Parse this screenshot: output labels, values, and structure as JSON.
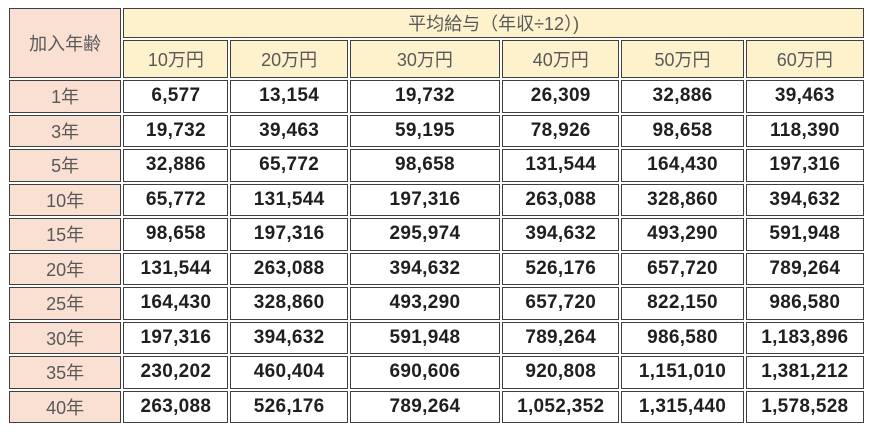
{
  "table": {
    "corner_header": "加入年齢",
    "group_header": "平均給与（年収÷12）)",
    "column_headers": [
      "10万円",
      "20万円",
      "30万円",
      "40万円",
      "50万円",
      "60万円"
    ],
    "rows": [
      {
        "label": "1年",
        "values": [
          "6,577",
          "13,154",
          "19,732",
          "26,309",
          "32,886",
          "39,463"
        ]
      },
      {
        "label": "3年",
        "values": [
          "19,732",
          "39,463",
          "59,195",
          "78,926",
          "98,658",
          "118,390"
        ]
      },
      {
        "label": "5年",
        "values": [
          "32,886",
          "65,772",
          "98,658",
          "131,544",
          "164,430",
          "197,316"
        ]
      },
      {
        "label": "10年",
        "values": [
          "65,772",
          "131,544",
          "197,316",
          "263,088",
          "328,860",
          "394,632"
        ]
      },
      {
        "label": "15年",
        "values": [
          "98,658",
          "197,316",
          "295,974",
          "394,632",
          "493,290",
          "591,948"
        ]
      },
      {
        "label": "20年",
        "values": [
          "131,544",
          "263,088",
          "394,632",
          "526,176",
          "657,720",
          "789,264"
        ]
      },
      {
        "label": "25年",
        "values": [
          "164,430",
          "328,860",
          "493,290",
          "657,720",
          "822,150",
          "986,580"
        ]
      },
      {
        "label": "30年",
        "values": [
          "197,316",
          "394,632",
          "591,948",
          "789,264",
          "986,580",
          "1,183,896"
        ]
      },
      {
        "label": "35年",
        "values": [
          "230,202",
          "460,404",
          "690,606",
          "920,808",
          "1,151,010",
          "1,381,212"
        ]
      },
      {
        "label": "40年",
        "values": [
          "263,088",
          "526,176",
          "789,264",
          "1,052,352",
          "1,315,440",
          "1,578,528"
        ]
      }
    ]
  },
  "colors": {
    "header_yellow": "#FDF2CC",
    "label_pink": "#F9E0D2",
    "border": "#3f3f3f",
    "header_text": "#595959",
    "value_text": "#1f1f1f",
    "background": "#ffffff"
  },
  "chart_data": {
    "type": "table",
    "title": "平均給与（年収÷12）)",
    "row_axis_label": "加入年齢",
    "columns": [
      "10万円",
      "20万円",
      "30万円",
      "40万円",
      "50万円",
      "60万円"
    ],
    "row_labels": [
      "1年",
      "3年",
      "5年",
      "10年",
      "15年",
      "20年",
      "25年",
      "30年",
      "35年",
      "40年"
    ],
    "values": [
      [
        6577,
        13154,
        19732,
        26309,
        32886,
        39463
      ],
      [
        19732,
        39463,
        59195,
        78926,
        98658,
        118390
      ],
      [
        32886,
        65772,
        98658,
        131544,
        164430,
        197316
      ],
      [
        65772,
        131544,
        197316,
        263088,
        328860,
        394632
      ],
      [
        98658,
        197316,
        295974,
        394632,
        493290,
        591948
      ],
      [
        131544,
        263088,
        394632,
        526176,
        657720,
        789264
      ],
      [
        164430,
        328860,
        493290,
        657720,
        822150,
        986580
      ],
      [
        197316,
        394632,
        591948,
        789264,
        986580,
        1183896
      ],
      [
        230202,
        460404,
        690606,
        920808,
        1151010,
        1381212
      ],
      [
        263088,
        526176,
        789264,
        1052352,
        1315440,
        1578528
      ]
    ]
  }
}
